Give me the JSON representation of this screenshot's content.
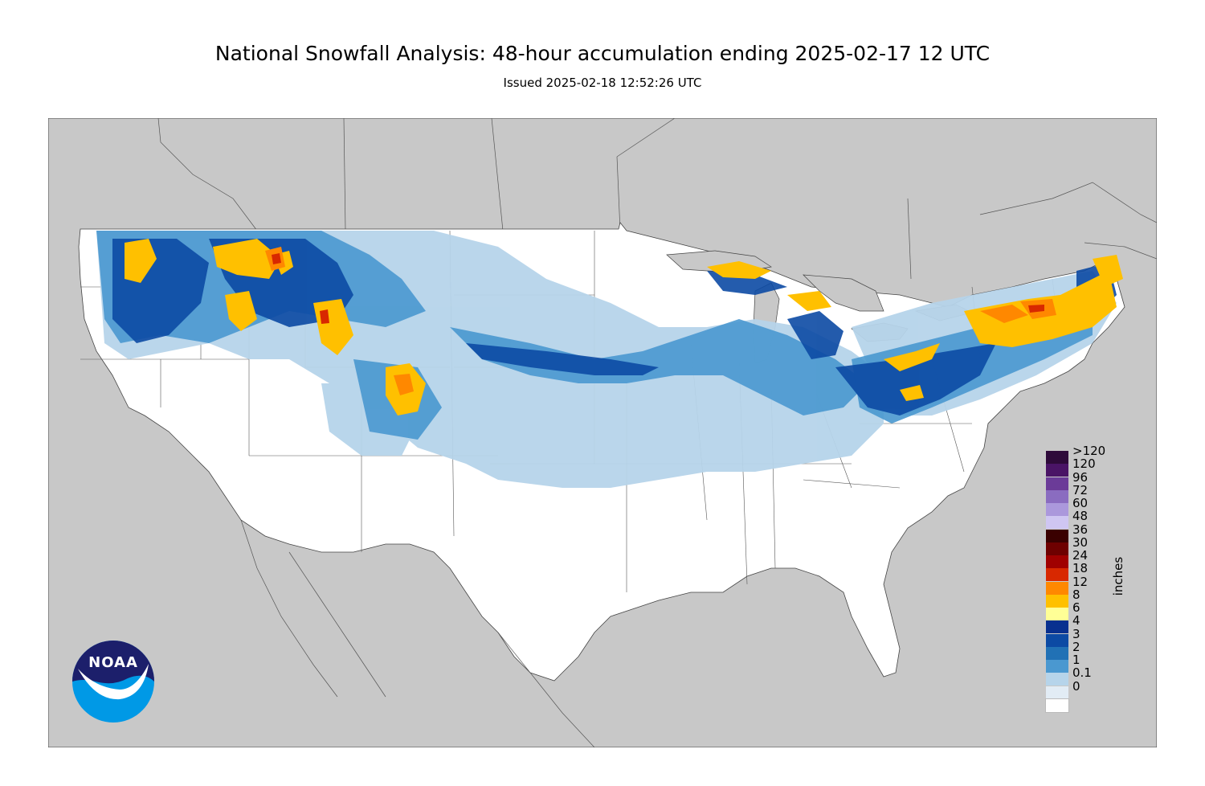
{
  "title": "National Snowfall Analysis: 48-hour accumulation ending 2025-02-17 12 UTC",
  "subtitle": "Issued 2025-02-18 12:52:26 UTC",
  "legend": {
    "unit": "inches",
    "bins": [
      {
        "label": ">120",
        "color": "#2e0a3a"
      },
      {
        "label": "120",
        "color": "#4a1466"
      },
      {
        "label": "96",
        "color": "#6b3b98"
      },
      {
        "label": "72",
        "color": "#8a6cc0"
      },
      {
        "label": "60",
        "color": "#ab98dc"
      },
      {
        "label": "48",
        "color": "#cfc6f2"
      },
      {
        "label": "36",
        "color": "#3a0000"
      },
      {
        "label": "30",
        "color": "#6e0000"
      },
      {
        "label": "24",
        "color": "#a00000"
      },
      {
        "label": "18",
        "color": "#d82800"
      },
      {
        "label": "12",
        "color": "#ff8800"
      },
      {
        "label": "8",
        "color": "#ffc000"
      },
      {
        "label": "6",
        "color": "#ffff96"
      },
      {
        "label": "4",
        "color": "#08308f"
      },
      {
        "label": "3",
        "color": "#0c4aa4"
      },
      {
        "label": "2",
        "color": "#2171b5"
      },
      {
        "label": "1",
        "color": "#4a98d0"
      },
      {
        "label": "0.1",
        "color": "#b6d4ea"
      },
      {
        "label": "0",
        "color": "#e2ecf5"
      },
      {
        "label": "",
        "color": "#ffffff"
      }
    ]
  },
  "logo": {
    "text": "NOAA"
  },
  "colors": {
    "ocean_land_outside": "#c8c8c8",
    "conus": "#ffffff",
    "border": "#444444"
  }
}
